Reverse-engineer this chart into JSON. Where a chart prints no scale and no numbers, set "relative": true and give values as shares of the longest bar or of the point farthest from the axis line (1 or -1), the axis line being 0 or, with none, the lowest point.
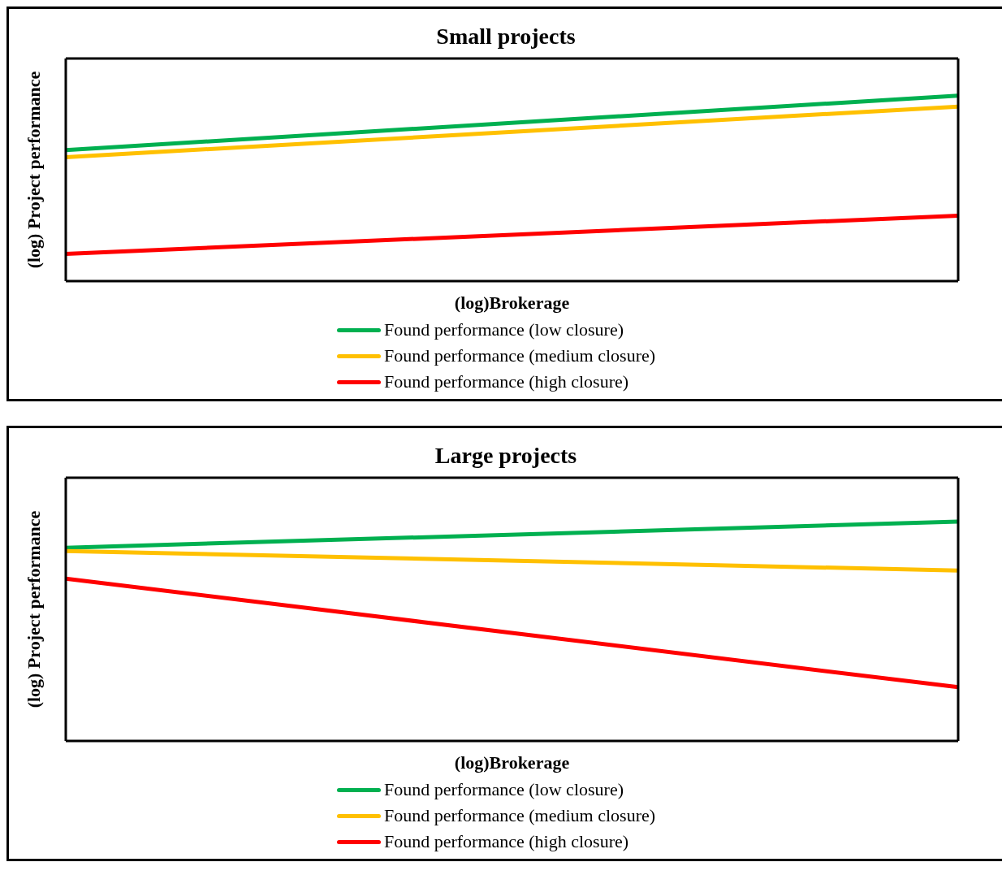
{
  "chart_data": [
    {
      "type": "line",
      "title": "Small projects",
      "xlabel": "(log)Brokerage",
      "ylabel": "(log) Project performance",
      "relative": true,
      "categories": [
        null,
        null
      ],
      "legend": "bottom",
      "marker": "none",
      "series": [
        {
          "name": "Found performance (low closure)",
          "color": "#00b050",
          "values": [
            0.706,
            1
          ]
        },
        {
          "name": "Found performance (medium closure)",
          "color": "#ffc000",
          "values": [
            0.668,
            0.941
          ]
        },
        {
          "name": "Found performance (high closure)",
          "color": "#ff0000",
          "values": [
            0.147,
            0.353
          ]
        }
      ]
    },
    {
      "type": "line",
      "title": "Large projects",
      "xlabel": "(log)Brokerage",
      "ylabel": "(log) Project performance",
      "relative": true,
      "categories": [
        null,
        null
      ],
      "legend": "bottom",
      "marker": "none",
      "series": [
        {
          "name": "Found performance (low closure)",
          "color": "#00b050",
          "values": [
            0.881,
            1
          ]
        },
        {
          "name": "Found performance (medium closure)",
          "color": "#ffc000",
          "values": [
            0.866,
            0.777
          ]
        },
        {
          "name": "Found performance (high closure)",
          "color": "#ff0000",
          "values": [
            0.74,
            0.245
          ]
        }
      ]
    }
  ]
}
